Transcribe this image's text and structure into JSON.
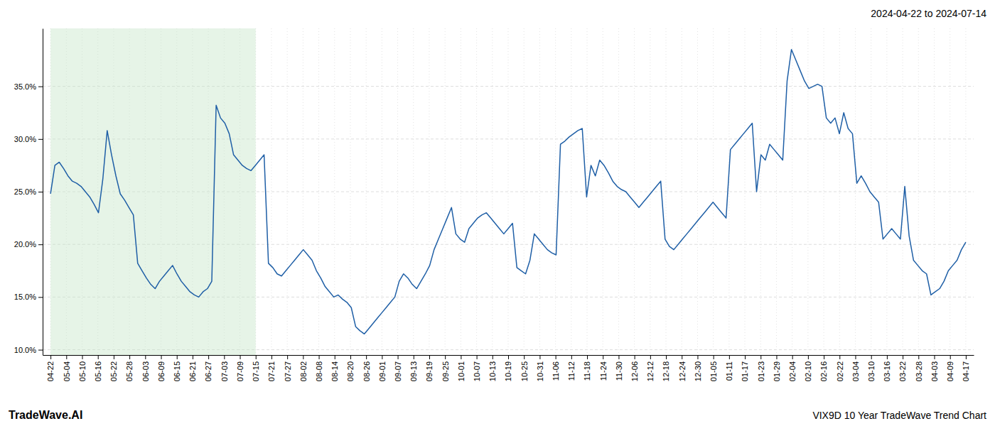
{
  "chart_data": {
    "type": "line",
    "title": "VIX9D 10 Year TradeWave Trend Chart",
    "subtitle": "2024-04-22 to 2024-07-14",
    "annotations": [
      "TradeWave.AI"
    ],
    "color": "#1f5fa6",
    "grid": true,
    "highlight": {
      "x": [
        0,
        47.069
      ],
      "color": "#c8e6c9"
    },
    "x": [
      0,
      1,
      2,
      3,
      4,
      5,
      6,
      7,
      8,
      9,
      10,
      11,
      12,
      13,
      14,
      15,
      16,
      17,
      18,
      19,
      20,
      21,
      22,
      23,
      24,
      25,
      26,
      27,
      28,
      29,
      30,
      31,
      32,
      33,
      34,
      35,
      36,
      37,
      38,
      39,
      40,
      41,
      42,
      43,
      44,
      45,
      46,
      47,
      48,
      49,
      50,
      51,
      52,
      53,
      54,
      55,
      56,
      57,
      58,
      59,
      60,
      61,
      62,
      63,
      64,
      65,
      66,
      67,
      68,
      69,
      70,
      71,
      72,
      73,
      74,
      75,
      76,
      77,
      78,
      79,
      80,
      81,
      82,
      83,
      84,
      85,
      86,
      87,
      88,
      89,
      90,
      91,
      92,
      93,
      94,
      95,
      96,
      97,
      98,
      99,
      100,
      101,
      102,
      103,
      104,
      105,
      106,
      107,
      108,
      109,
      110,
      111,
      112,
      113,
      114,
      115,
      116,
      117,
      118,
      119,
      120,
      121,
      122,
      123,
      124,
      125,
      126,
      127,
      128,
      129,
      130,
      131,
      132,
      133,
      134,
      135,
      136,
      137,
      138,
      139,
      140,
      141,
      142,
      143,
      144,
      145,
      146,
      147,
      148,
      149,
      150,
      151,
      152,
      153,
      154,
      155,
      156,
      157,
      158,
      159,
      160,
      161,
      162,
      163,
      164,
      165,
      166,
      167,
      168,
      169,
      170,
      171,
      172,
      173,
      174,
      175,
      176,
      177,
      178,
      179,
      180,
      181,
      182,
      183,
      184,
      185,
      186,
      187,
      188,
      189,
      190,
      191,
      192,
      193,
      194,
      195,
      196,
      197,
      198,
      199,
      200,
      201,
      202,
      203,
      204,
      205,
      206,
      207,
      208,
      209,
      210
    ],
    "values": [
      24.8,
      27.5,
      27.8,
      27.2,
      26.5,
      26.0,
      25.8,
      25.5,
      25.0,
      24.5,
      23.8,
      23.0,
      26.2,
      30.8,
      28.5,
      26.5,
      24.8,
      24.2,
      23.5,
      22.8,
      18.2,
      17.5,
      16.8,
      16.2,
      15.8,
      16.5,
      17.0,
      17.5,
      18.0,
      17.2,
      16.5,
      16.0,
      15.5,
      15.2,
      15.0,
      15.5,
      15.8,
      16.5,
      33.2,
      32.0,
      31.5,
      30.5,
      28.5,
      28.0,
      27.5,
      27.2,
      27.0,
      27.5,
      28.0,
      28.5,
      18.2,
      17.8,
      17.2,
      17.0,
      17.5,
      18.0,
      18.5,
      19.0,
      19.5,
      19.0,
      18.5,
      17.5,
      16.8,
      16.0,
      15.5,
      15.0,
      15.2,
      14.8,
      14.5,
      14.0,
      12.2,
      11.8,
      11.5,
      12.0,
      12.5,
      13.0,
      13.5,
      14.0,
      14.5,
      15.0,
      16.5,
      17.2,
      16.8,
      16.2,
      15.8,
      16.5,
      17.2,
      18.0,
      19.5,
      20.5,
      21.5,
      22.5,
      23.5,
      21.0,
      20.5,
      20.2,
      21.5,
      22.0,
      22.5,
      22.8,
      23.0,
      22.5,
      22.0,
      21.5,
      21.0,
      21.5,
      22.0,
      17.8,
      17.5,
      17.2,
      18.5,
      21.0,
      20.5,
      20.0,
      19.5,
      19.2,
      19.0,
      29.5,
      29.8,
      30.2,
      30.5,
      30.8,
      31.0,
      24.5,
      27.5,
      26.5,
      28.0,
      27.5,
      26.8,
      26.0,
      25.5,
      25.2,
      25.0,
      24.5,
      24.0,
      23.5,
      24.0,
      24.5,
      25.0,
      25.5,
      26.0,
      20.5,
      19.8,
      19.5,
      20.0,
      20.5,
      21.0,
      21.5,
      22.0,
      22.5,
      23.0,
      23.5,
      24.0,
      23.5,
      23.0,
      22.5,
      29.0,
      29.5,
      30.0,
      30.5,
      31.0,
      31.5,
      25.0,
      28.5,
      28.0,
      29.5,
      29.0,
      28.5,
      28.0,
      35.5,
      38.5,
      37.5,
      36.5,
      35.5,
      34.8,
      35.0,
      35.2,
      35.0,
      32.0,
      31.5,
      32.0,
      30.5,
      32.5,
      31.0,
      30.5,
      25.8,
      26.5,
      25.8,
      25.0,
      24.5,
      24.0,
      20.5,
      21.0,
      21.5,
      21.0,
      20.5,
      25.5,
      20.8,
      18.5,
      18.0,
      17.5,
      17.2,
      15.2,
      15.5,
      15.8,
      16.5,
      17.5,
      18.0,
      18.5,
      19.5,
      20.2
    ],
    "xlim": [
      -1.8103,
      211.8103
    ],
    "xticks": [
      {
        "value": 0,
        "label": "04-22"
      },
      {
        "value": 3.6207,
        "label": "05-04"
      },
      {
        "value": 7.2414,
        "label": "05-10"
      },
      {
        "value": 10.8621,
        "label": "05-16"
      },
      {
        "value": 14.4828,
        "label": "05-22"
      },
      {
        "value": 18.1034,
        "label": "05-28"
      },
      {
        "value": 21.7241,
        "label": "06-03"
      },
      {
        "value": 25.3448,
        "label": "06-09"
      },
      {
        "value": 28.9655,
        "label": "06-15"
      },
      {
        "value": 32.5862,
        "label": "06-21"
      },
      {
        "value": 36.2069,
        "label": "06-27"
      },
      {
        "value": 39.8276,
        "label": "07-03"
      },
      {
        "value": 43.4483,
        "label": "07-09"
      },
      {
        "value": 47.069,
        "label": "07-15"
      },
      {
        "value": 50.6897,
        "label": "07-21"
      },
      {
        "value": 54.3103,
        "label": "07-27"
      },
      {
        "value": 57.931,
        "label": "08-02"
      },
      {
        "value": 61.5517,
        "label": "08-08"
      },
      {
        "value": 65.1724,
        "label": "08-14"
      },
      {
        "value": 68.7931,
        "label": "08-20"
      },
      {
        "value": 72.4138,
        "label": "08-26"
      },
      {
        "value": 76.0345,
        "label": "09-01"
      },
      {
        "value": 79.6552,
        "label": "09-07"
      },
      {
        "value": 83.2759,
        "label": "09-13"
      },
      {
        "value": 86.8966,
        "label": "09-19"
      },
      {
        "value": 90.5172,
        "label": "09-25"
      },
      {
        "value": 94.1379,
        "label": "10-01"
      },
      {
        "value": 97.7586,
        "label": "10-07"
      },
      {
        "value": 101.3793,
        "label": "10-13"
      },
      {
        "value": 105,
        "label": "10-19"
      },
      {
        "value": 108.6207,
        "label": "10-25"
      },
      {
        "value": 112.2414,
        "label": "10-31"
      },
      {
        "value": 115.8621,
        "label": "11-06"
      },
      {
        "value": 119.4828,
        "label": "11-12"
      },
      {
        "value": 123.1034,
        "label": "11-18"
      },
      {
        "value": 126.7241,
        "label": "11-24"
      },
      {
        "value": 130.3448,
        "label": "11-30"
      },
      {
        "value": 133.9655,
        "label": "12-06"
      },
      {
        "value": 137.5862,
        "label": "12-12"
      },
      {
        "value": 141.2069,
        "label": "12-18"
      },
      {
        "value": 144.8276,
        "label": "12-24"
      },
      {
        "value": 148.4483,
        "label": "12-30"
      },
      {
        "value": 152.069,
        "label": "01-05"
      },
      {
        "value": 155.6897,
        "label": "01-11"
      },
      {
        "value": 159.3103,
        "label": "01-17"
      },
      {
        "value": 162.931,
        "label": "01-23"
      },
      {
        "value": 166.5517,
        "label": "01-29"
      },
      {
        "value": 170.1724,
        "label": "02-04"
      },
      {
        "value": 173.7931,
        "label": "02-10"
      },
      {
        "value": 177.4138,
        "label": "02-16"
      },
      {
        "value": 181.0345,
        "label": "02-22"
      },
      {
        "value": 184.6552,
        "label": "03-04"
      },
      {
        "value": 188.2759,
        "label": "03-10"
      },
      {
        "value": 191.8966,
        "label": "03-16"
      },
      {
        "value": 195.5172,
        "label": "03-22"
      },
      {
        "value": 199.1379,
        "label": "03-28"
      },
      {
        "value": 202.7586,
        "label": "04-03"
      },
      {
        "value": 206.3793,
        "label": "04-09"
      },
      {
        "value": 210,
        "label": "04-17"
      }
    ],
    "ylim": [
      9.5,
      40.5
    ],
    "yticks": [
      {
        "value": 10.0,
        "label": "10.0%"
      },
      {
        "value": 15.0,
        "label": "15.0%"
      },
      {
        "value": 20.0,
        "label": "20.0%"
      },
      {
        "value": 25.0,
        "label": "25.0%"
      },
      {
        "value": 30.0,
        "label": "30.0%"
      },
      {
        "value": 35.0,
        "label": "35.0%"
      }
    ]
  }
}
